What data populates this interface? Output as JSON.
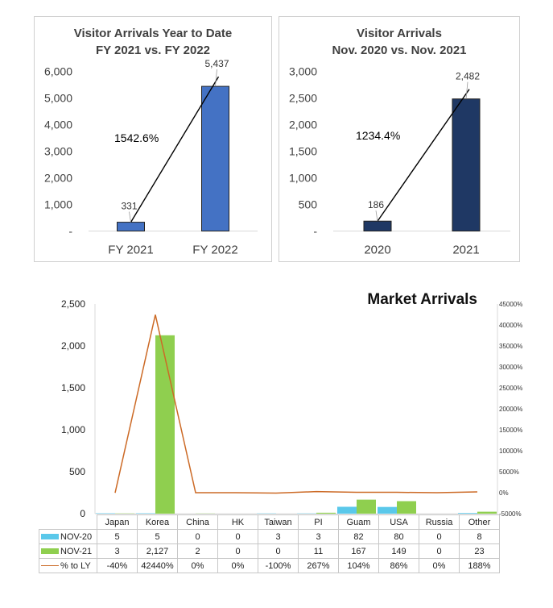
{
  "colors": {
    "bar_blue": "#4472c4",
    "bar_navy": "#1f3864",
    "nov20": "#5ac8ea",
    "nov21": "#8fcf4f",
    "pct_line": "#cc6a26"
  },
  "chart_data": [
    {
      "type": "bar",
      "title": "Visitor Arrivals Year to Date",
      "subtitle": "FY 2021 vs. FY 2022",
      "categories": [
        "FY 2021",
        "FY 2022"
      ],
      "values": [
        331,
        5437
      ],
      "value_labels": [
        "331",
        "5,437"
      ],
      "yticks": [
        "-",
        "1,000",
        "2,000",
        "3,000",
        "4,000",
        "5,000",
        "6,000"
      ],
      "ylim": [
        0,
        6000
      ],
      "annotation": "1542.6%",
      "grid": false,
      "legend": "none"
    },
    {
      "type": "bar",
      "title": "Visitor Arrivals",
      "subtitle": "Nov. 2020 vs. Nov. 2021",
      "categories": [
        "2020",
        "2021"
      ],
      "values": [
        186,
        2482
      ],
      "value_labels": [
        "186",
        "2,482"
      ],
      "yticks": [
        "-",
        "500",
        "1,000",
        "1,500",
        "2,000",
        "2,500",
        "3,000"
      ],
      "ylim": [
        0,
        3000
      ],
      "annotation": "1234.4%",
      "grid": false,
      "legend": "none"
    },
    {
      "type": "bar",
      "title": "Market Arrivals",
      "categories": [
        "Japan",
        "Korea",
        "China",
        "HK",
        "Taiwan",
        "PI",
        "Guam",
        "USA",
        "Russia",
        "Other"
      ],
      "series": [
        {
          "name": "NOV-20",
          "values": [
            5,
            5,
            0,
            0,
            3,
            3,
            82,
            80,
            0,
            8
          ],
          "labels": [
            "5",
            "5",
            "0",
            "0",
            "3",
            "3",
            "82",
            "80",
            "0",
            "8"
          ]
        },
        {
          "name": "NOV-21",
          "values": [
            3,
            2127,
            2,
            0,
            0,
            11,
            167,
            149,
            0,
            23
          ],
          "labels": [
            "3",
            "2,127",
            "2",
            "0",
            "0",
            "11",
            "167",
            "149",
            "0",
            "23"
          ]
        },
        {
          "name": "% to LY",
          "axis": "secondary",
          "values": [
            -40,
            42440,
            0,
            0,
            -100,
            267,
            104,
            86,
            0,
            188
          ],
          "labels": [
            "-40%",
            "42440%",
            "0%",
            "0%",
            "-100%",
            "267%",
            "104%",
            "86%",
            "0%",
            "188%"
          ]
        }
      ],
      "yticks": [
        "0",
        "500",
        "1,000",
        "1,500",
        "2,000",
        "2,500"
      ],
      "ylim": [
        0,
        2500
      ],
      "y2ticks": [
        "-5000%",
        "0%",
        "5000%",
        "10000%",
        "15000%",
        "20000%",
        "25000%",
        "30000%",
        "35000%",
        "40000%",
        "45000%"
      ],
      "y2lim": [
        -5000,
        45000
      ],
      "grid": false,
      "legend": "data table"
    }
  ]
}
